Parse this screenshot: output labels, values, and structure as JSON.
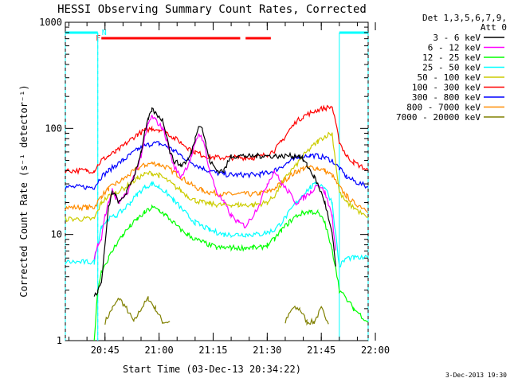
{
  "chart_data": {
    "type": "line",
    "title": "HESSI Observing Summary Count Rates, Corrected",
    "xlabel": "Start Time (03-Dec-13 20:34:22)",
    "ylabel": "Corrected Count Rate (s⁻¹ detector⁻¹)",
    "y_scale": "log",
    "ylim": [
      1,
      1000
    ],
    "y_ticks": [
      {
        "value": 1,
        "label": "1"
      },
      {
        "value": 10,
        "label": "10"
      },
      {
        "value": 100,
        "label": "100"
      },
      {
        "value": 1000,
        "label": "1000"
      }
    ],
    "x_range_min": [
      0,
      84
    ],
    "x_ticks": [
      {
        "t": 11,
        "label": "20:45"
      },
      {
        "t": 26,
        "label": "21:00"
      },
      {
        "t": 41,
        "label": "21:15"
      },
      {
        "t": 56,
        "label": "21:30"
      },
      {
        "t": 71,
        "label": "21:45"
      },
      {
        "t": 86,
        "label": "22:00"
      }
    ],
    "legend_header": [
      "Det 1,3,5,6,7,9,",
      "Att 0"
    ],
    "legend_position": "right",
    "series": [
      {
        "name": "3 - 6 keV",
        "color": "#000000",
        "t": [
          0,
          6,
          8,
          9,
          10,
          11,
          12,
          13,
          14,
          15,
          17,
          19,
          21,
          22,
          23,
          24,
          25,
          27,
          28,
          29,
          30,
          32,
          34,
          35,
          36,
          37,
          38,
          39,
          40,
          42,
          44,
          46,
          48,
          50,
          51,
          52,
          53,
          54,
          55,
          56,
          58,
          60,
          62,
          63,
          64,
          65,
          66,
          67,
          68,
          69,
          70,
          72,
          74,
          75
        ],
        "v": [
          null,
          null,
          2.5,
          3,
          3.5,
          8,
          18,
          25,
          23,
          20,
          25,
          35,
          60,
          90,
          120,
          150,
          140,
          120,
          90,
          60,
          50,
          45,
          50,
          60,
          80,
          110,
          100,
          70,
          50,
          40,
          40,
          55,
          55,
          55,
          55,
          55,
          55,
          55,
          55,
          55,
          55,
          55,
          55,
          55,
          55,
          55,
          50,
          45,
          40,
          35,
          30,
          20,
          10,
          5
        ]
      },
      {
        "name": "6 - 12 keV",
        "color": "#ff00ff",
        "t": [
          0,
          6,
          8,
          9,
          10,
          11,
          12,
          13,
          14,
          15,
          17,
          19,
          21,
          22,
          23,
          24,
          25,
          27,
          28,
          29,
          30,
          32,
          34,
          35,
          36,
          37,
          38,
          39,
          40,
          42,
          44,
          46,
          48,
          50,
          52,
          54,
          56,
          58,
          60,
          62,
          64,
          66,
          68,
          70,
          72,
          74,
          75
        ],
        "v": [
          null,
          null,
          6,
          8,
          9,
          15,
          20,
          26,
          22,
          20,
          24,
          35,
          55,
          80,
          110,
          130,
          120,
          100,
          80,
          60,
          45,
          35,
          45,
          55,
          70,
          90,
          80,
          60,
          40,
          25,
          20,
          15,
          13,
          12,
          15,
          20,
          30,
          40,
          30,
          25,
          20,
          22,
          25,
          30,
          25,
          15,
          7
        ]
      },
      {
        "name": "12 - 25 keV",
        "color": "#00ff00",
        "t": [
          0,
          6,
          8,
          9,
          10,
          12,
          14,
          16,
          18,
          20,
          22,
          24,
          26,
          28,
          30,
          32,
          34,
          36,
          38,
          40,
          42,
          44,
          46,
          48,
          50,
          52,
          54,
          56,
          58,
          60,
          62,
          64,
          66,
          68,
          70,
          72,
          74,
          75,
          76,
          80,
          84
        ],
        "v": [
          null,
          null,
          1,
          3,
          4.5,
          6,
          8,
          10,
          12,
          14,
          16,
          18,
          17,
          15,
          13,
          11,
          10,
          9,
          8.5,
          8,
          7.5,
          7.5,
          7.5,
          7.5,
          7.5,
          7.5,
          7.5,
          8,
          9,
          11,
          13,
          15,
          16,
          16.5,
          16,
          13,
          7,
          5,
          3,
          2,
          1.5
        ]
      },
      {
        "name": "25 - 50 keV",
        "color": "#00ffff",
        "t": [
          0,
          6,
          8,
          10,
          12,
          14,
          16,
          18,
          20,
          22,
          24,
          26,
          28,
          30,
          32,
          34,
          36,
          38,
          40,
          42,
          44,
          46,
          48,
          50,
          52,
          54,
          56,
          58,
          60,
          62,
          64,
          66,
          68,
          70,
          72,
          74,
          76,
          78,
          80,
          84
        ],
        "v": [
          5.5,
          5.5,
          5.5,
          12,
          14,
          15,
          17,
          20,
          24,
          28,
          30,
          28,
          25,
          21,
          18,
          15,
          13,
          12,
          11,
          10.5,
          10,
          10,
          10,
          10,
          10,
          10,
          10.5,
          11,
          13,
          16,
          20,
          24,
          28,
          30,
          28,
          20,
          5,
          6,
          6,
          6
        ]
      },
      {
        "name": "50 - 100 keV",
        "color": "#cccc00",
        "t": [
          0,
          6,
          8,
          10,
          12,
          14,
          16,
          18,
          20,
          22,
          24,
          26,
          28,
          30,
          32,
          34,
          36,
          38,
          40,
          42,
          44,
          46,
          48,
          50,
          52,
          54,
          56,
          58,
          60,
          62,
          64,
          66,
          68,
          70,
          72,
          74,
          76,
          78,
          80,
          84
        ],
        "v": [
          14,
          14,
          14,
          20,
          23,
          25,
          27,
          30,
          34,
          37,
          38,
          36,
          33,
          29,
          26,
          23,
          21,
          20,
          19.5,
          19,
          19,
          19,
          19,
          19,
          19,
          19.5,
          20,
          23,
          30,
          38,
          45,
          55,
          65,
          75,
          85,
          90,
          25,
          20,
          18,
          14
        ]
      },
      {
        "name": "100 - 300 keV",
        "color": "#ff0000",
        "t": [
          0,
          6,
          8,
          10,
          12,
          14,
          16,
          18,
          20,
          22,
          24,
          26,
          28,
          30,
          32,
          34,
          36,
          38,
          40,
          42,
          44,
          46,
          48,
          50,
          52,
          54,
          56,
          58,
          60,
          62,
          64,
          66,
          68,
          70,
          72,
          74,
          76,
          78,
          80,
          84
        ],
        "v": [
          40,
          40,
          40,
          50,
          55,
          60,
          68,
          78,
          88,
          95,
          100,
          98,
          92,
          82,
          74,
          66,
          60,
          56,
          54,
          53,
          53,
          53,
          53,
          53,
          53,
          54,
          57,
          62,
          75,
          95,
          115,
          130,
          140,
          150,
          155,
          160,
          75,
          55,
          48,
          40
        ]
      },
      {
        "name": "300 - 800 keV",
        "color": "#0000ff",
        "t": [
          0,
          6,
          8,
          10,
          12,
          14,
          16,
          18,
          20,
          22,
          24,
          26,
          28,
          30,
          32,
          34,
          36,
          38,
          40,
          42,
          44,
          46,
          48,
          50,
          52,
          54,
          56,
          58,
          60,
          62,
          64,
          66,
          68,
          70,
          72,
          74,
          76,
          78,
          80,
          84
        ],
        "v": [
          28,
          28,
          28,
          35,
          40,
          45,
          50,
          56,
          63,
          68,
          72,
          72,
          68,
          62,
          56,
          50,
          46,
          42,
          40,
          38,
          37,
          36.5,
          36.5,
          36.5,
          36.5,
          37,
          38,
          40,
          44,
          48,
          52,
          55,
          56,
          55,
          53,
          50,
          42,
          35,
          32,
          28
        ]
      },
      {
        "name": "800 - 7000 keV",
        "color": "#ff8c00",
        "t": [
          0,
          6,
          8,
          10,
          12,
          14,
          16,
          18,
          20,
          22,
          24,
          26,
          28,
          30,
          32,
          34,
          36,
          38,
          40,
          42,
          44,
          46,
          48,
          50,
          52,
          54,
          56,
          58,
          60,
          62,
          64,
          66,
          68,
          70,
          72,
          74,
          76,
          78,
          80,
          84
        ],
        "v": [
          18,
          18,
          18,
          23,
          27,
          30,
          33,
          37,
          42,
          45,
          47,
          46,
          43,
          39,
          35,
          31,
          28,
          26,
          25,
          24.5,
          24,
          24,
          24,
          24,
          24,
          24.5,
          25,
          27,
          31,
          35,
          39,
          42,
          43,
          42,
          40,
          36,
          28,
          23,
          20,
          17
        ]
      },
      {
        "name": "7000 - 20000 keV",
        "color": "#808000",
        "t": [
          0,
          7,
          9,
          11,
          13,
          15,
          17,
          19,
          21,
          23,
          25,
          27,
          29,
          31,
          33,
          35,
          37,
          39,
          41,
          43,
          45,
          47,
          49,
          51,
          53,
          55,
          57,
          59,
          61,
          63,
          65,
          67,
          69,
          71,
          73,
          75
        ],
        "v": [
          null,
          null,
          null,
          1.5,
          2,
          2.5,
          2,
          1.5,
          2,
          2.5,
          2,
          1.5,
          1.5,
          null,
          null,
          null,
          null,
          null,
          null,
          null,
          null,
          null,
          null,
          null,
          null,
          null,
          null,
          null,
          1.5,
          2,
          2,
          1.5,
          1.5,
          2,
          1.5,
          null
        ]
      }
    ],
    "flags": [
      {
        "label": "F",
        "color": "#ff0000",
        "segments": [
          [
            10,
            48.5
          ],
          [
            50,
            57
          ]
        ]
      },
      {
        "label": "N",
        "color": "#00ffff",
        "segments": [
          [
            0,
            9
          ],
          [
            76,
            84
          ]
        ]
      }
    ],
    "footer_date": "3-Dec-2013 19:30"
  }
}
